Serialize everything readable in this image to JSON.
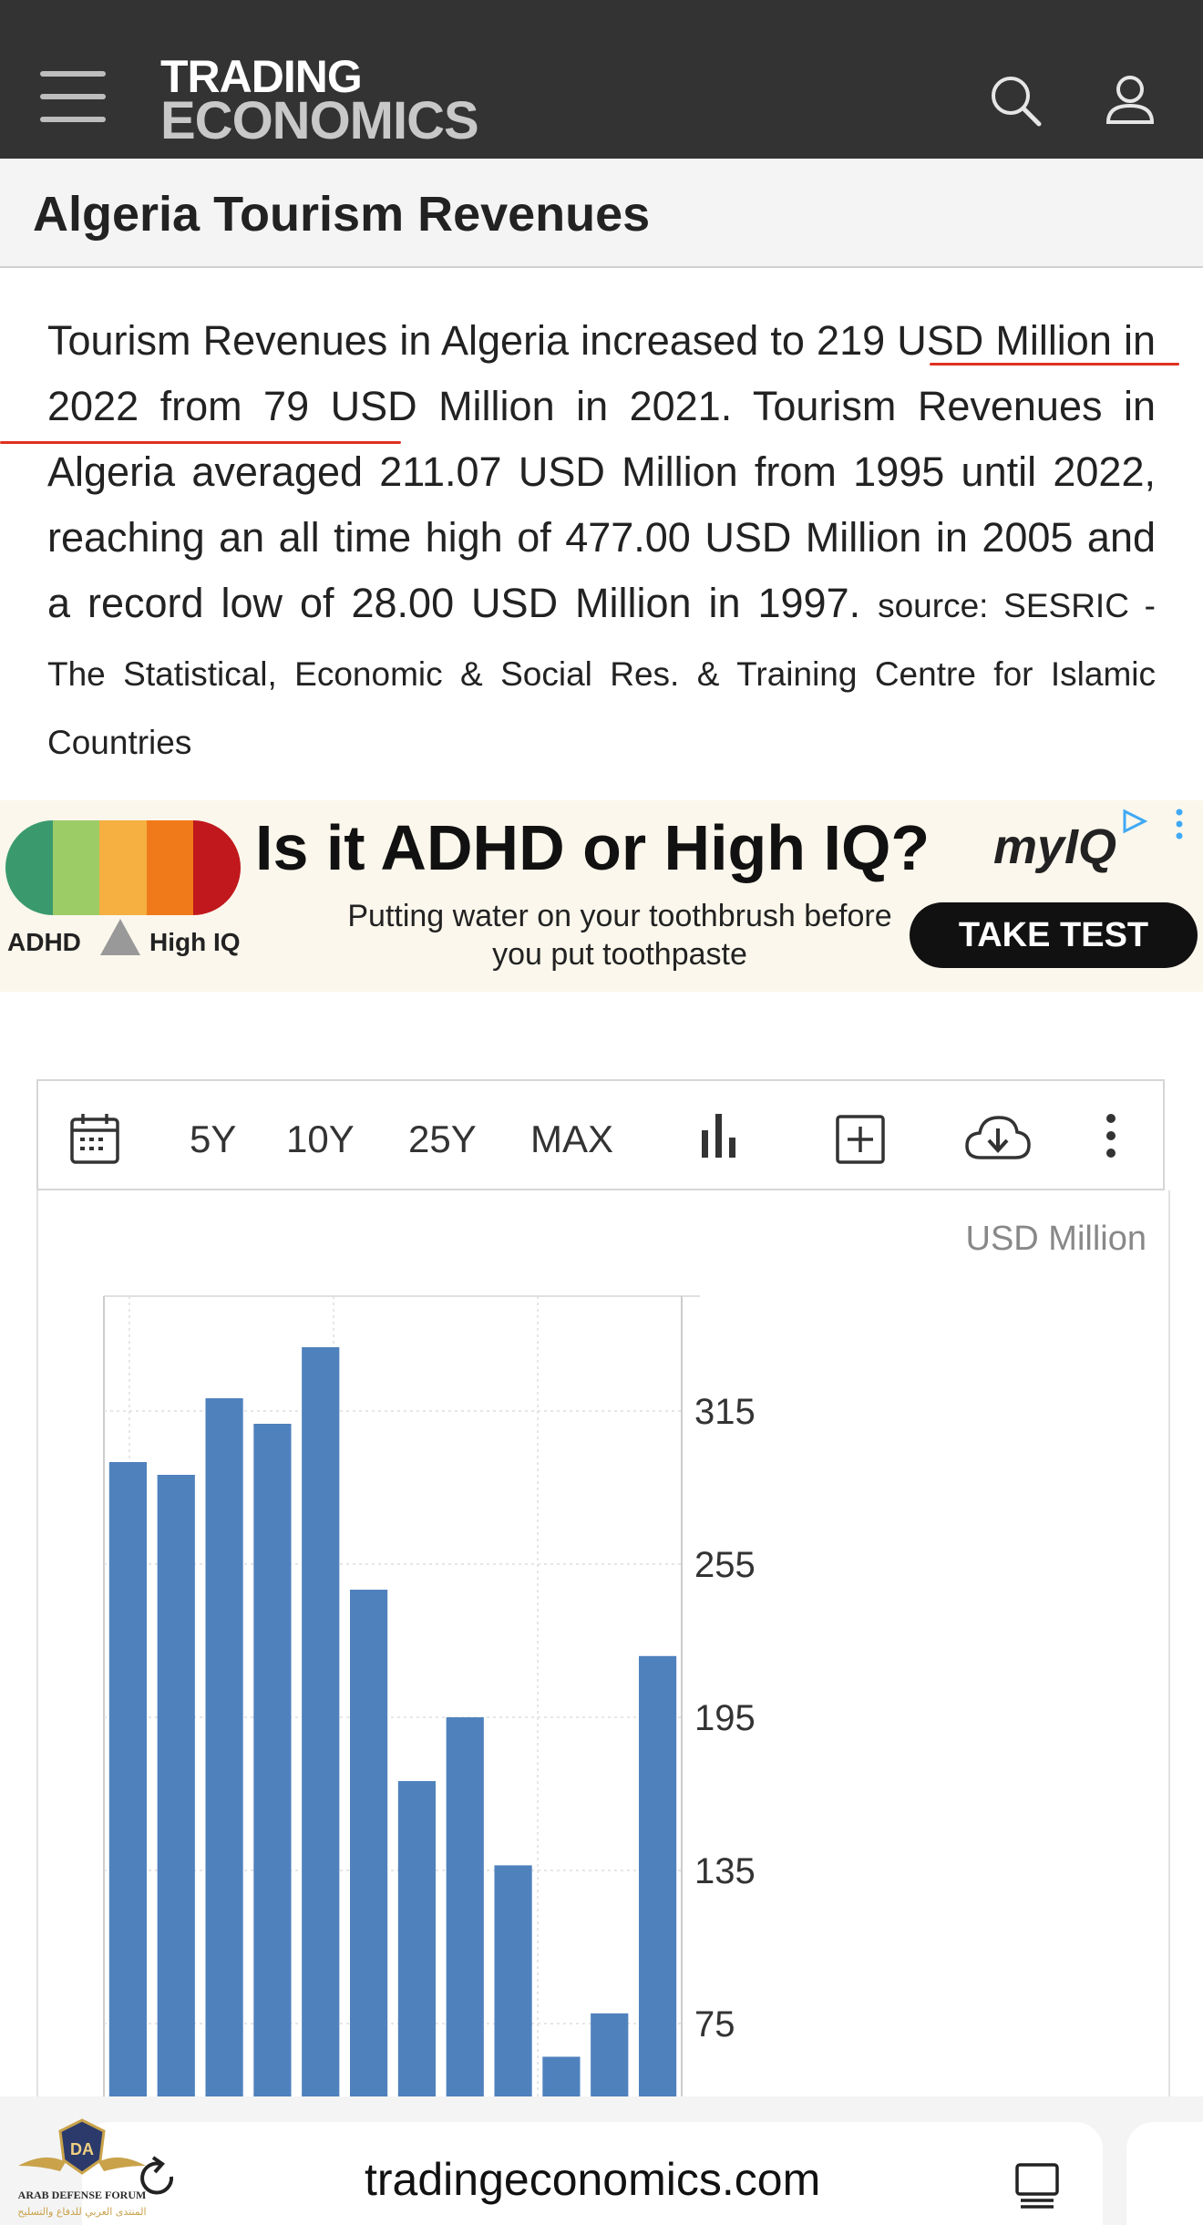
{
  "header": {
    "logo_line1": "TRADING",
    "logo_line2": "ECONOMICS",
    "menu_icon": "hamburger-icon",
    "search_icon": "search-icon",
    "user_icon": "user-icon"
  },
  "page": {
    "title": "Algeria Tourism Revenues",
    "description": "Tourism Revenues in Algeria increased to 219 USD Million in 2022 from 79 USD Million in 2021. Tourism Revenues in Algeria averaged 211.07 USD Million from 1995 until 2022, reaching an all time high of 477.00 USD Million in 2005 and a record low of 28.00 USD Million in 1997.",
    "source": "source: SESRIC - The Statistical, Economic & Social Res. & Training Centre for Islamic Countries"
  },
  "ad": {
    "title": "Is it ADHD or High IQ?",
    "brand": "myIQ",
    "subtitle": "Putting water on your toothbrush before you put toothpaste",
    "cta": "TAKE TEST",
    "scale_left": "ADHD",
    "scale_right": "High IQ",
    "bar_colors": [
      "#3a9a6e",
      "#9ccc65",
      "#f5b041",
      "#f07a1a",
      "#c0181c"
    ]
  },
  "toolbar": {
    "calendar_icon": "calendar-icon",
    "ranges": [
      "5Y",
      "10Y",
      "25Y",
      "MAX"
    ],
    "chart_type_icon": "bar-chart-icon",
    "compare_icon": "add-box-icon",
    "download_icon": "cloud-download-icon",
    "more_icon": "more-vertical-icon"
  },
  "chart_data": {
    "type": "bar",
    "ylabel": "USD Million",
    "yticks": [
      315,
      255,
      195,
      135,
      75
    ],
    "ylim": [
      45,
      360
    ],
    "values": [
      295,
      290,
      320,
      310,
      340,
      245,
      170,
      195,
      137,
      62,
      79,
      219
    ],
    "color": "#4f81bd",
    "grid": true
  },
  "browser": {
    "url": "tradingeconomics.com",
    "reload_icon": "reload-icon",
    "reader_icon": "reader-icon"
  },
  "watermark": {
    "line1": "ARAB DEFENSE FORUM",
    "line2": "المنتدى العربي للدفاع والتسليح"
  }
}
